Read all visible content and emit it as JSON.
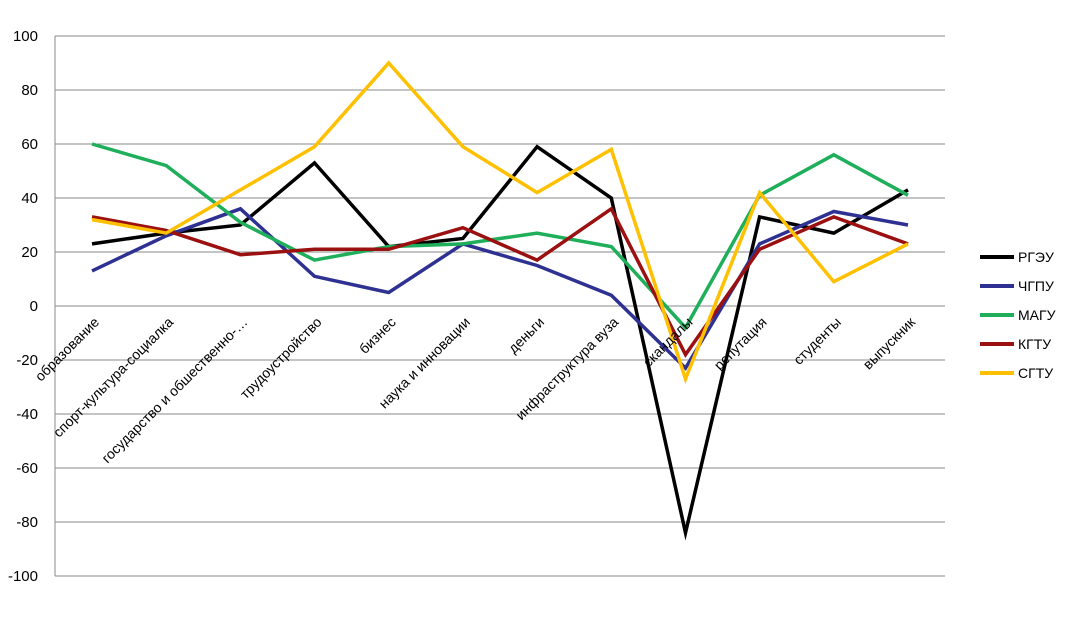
{
  "chart_data": {
    "type": "line",
    "title": "",
    "xlabel": "",
    "ylabel": "",
    "ylim": [
      -100,
      100
    ],
    "yticks": [
      100,
      80,
      60,
      40,
      20,
      0,
      -20,
      -40,
      -60,
      -80,
      -100
    ],
    "grid": "horizontal",
    "legend_position": "right",
    "categories": [
      "образование",
      "спорт-культура-социалка",
      "государство и обшественно-…",
      "трудоустройство",
      "бизнес",
      "наука и инновации",
      "деньги",
      "инфраструктура вуза",
      "скандалы",
      "репутация",
      "студенты",
      "выпускник"
    ],
    "series": [
      {
        "name": "РГЭУ",
        "color": "#000000",
        "values": [
          23,
          27,
          30,
          53,
          22,
          25,
          59,
          40,
          -84,
          33,
          27,
          43
        ]
      },
      {
        "name": "ЧГПУ",
        "color": "#2E3192",
        "values": [
          13,
          26,
          36,
          11,
          5,
          23,
          15,
          4,
          -23,
          23,
          35,
          30
        ]
      },
      {
        "name": "МАГУ",
        "color": "#1FAF5B",
        "values": [
          60,
          52,
          31,
          17,
          22,
          23,
          27,
          22,
          -8,
          41,
          56,
          41
        ]
      },
      {
        "name": "КГТУ",
        "color": "#9B1010",
        "values": [
          33,
          28,
          19,
          21,
          21,
          29,
          17,
          36,
          -18,
          21,
          33,
          23
        ]
      },
      {
        "name": "СГТУ",
        "color": "#FFC000",
        "values": [
          32,
          27,
          43,
          59,
          90,
          59,
          42,
          58,
          -27,
          42,
          9,
          23
        ]
      }
    ]
  }
}
